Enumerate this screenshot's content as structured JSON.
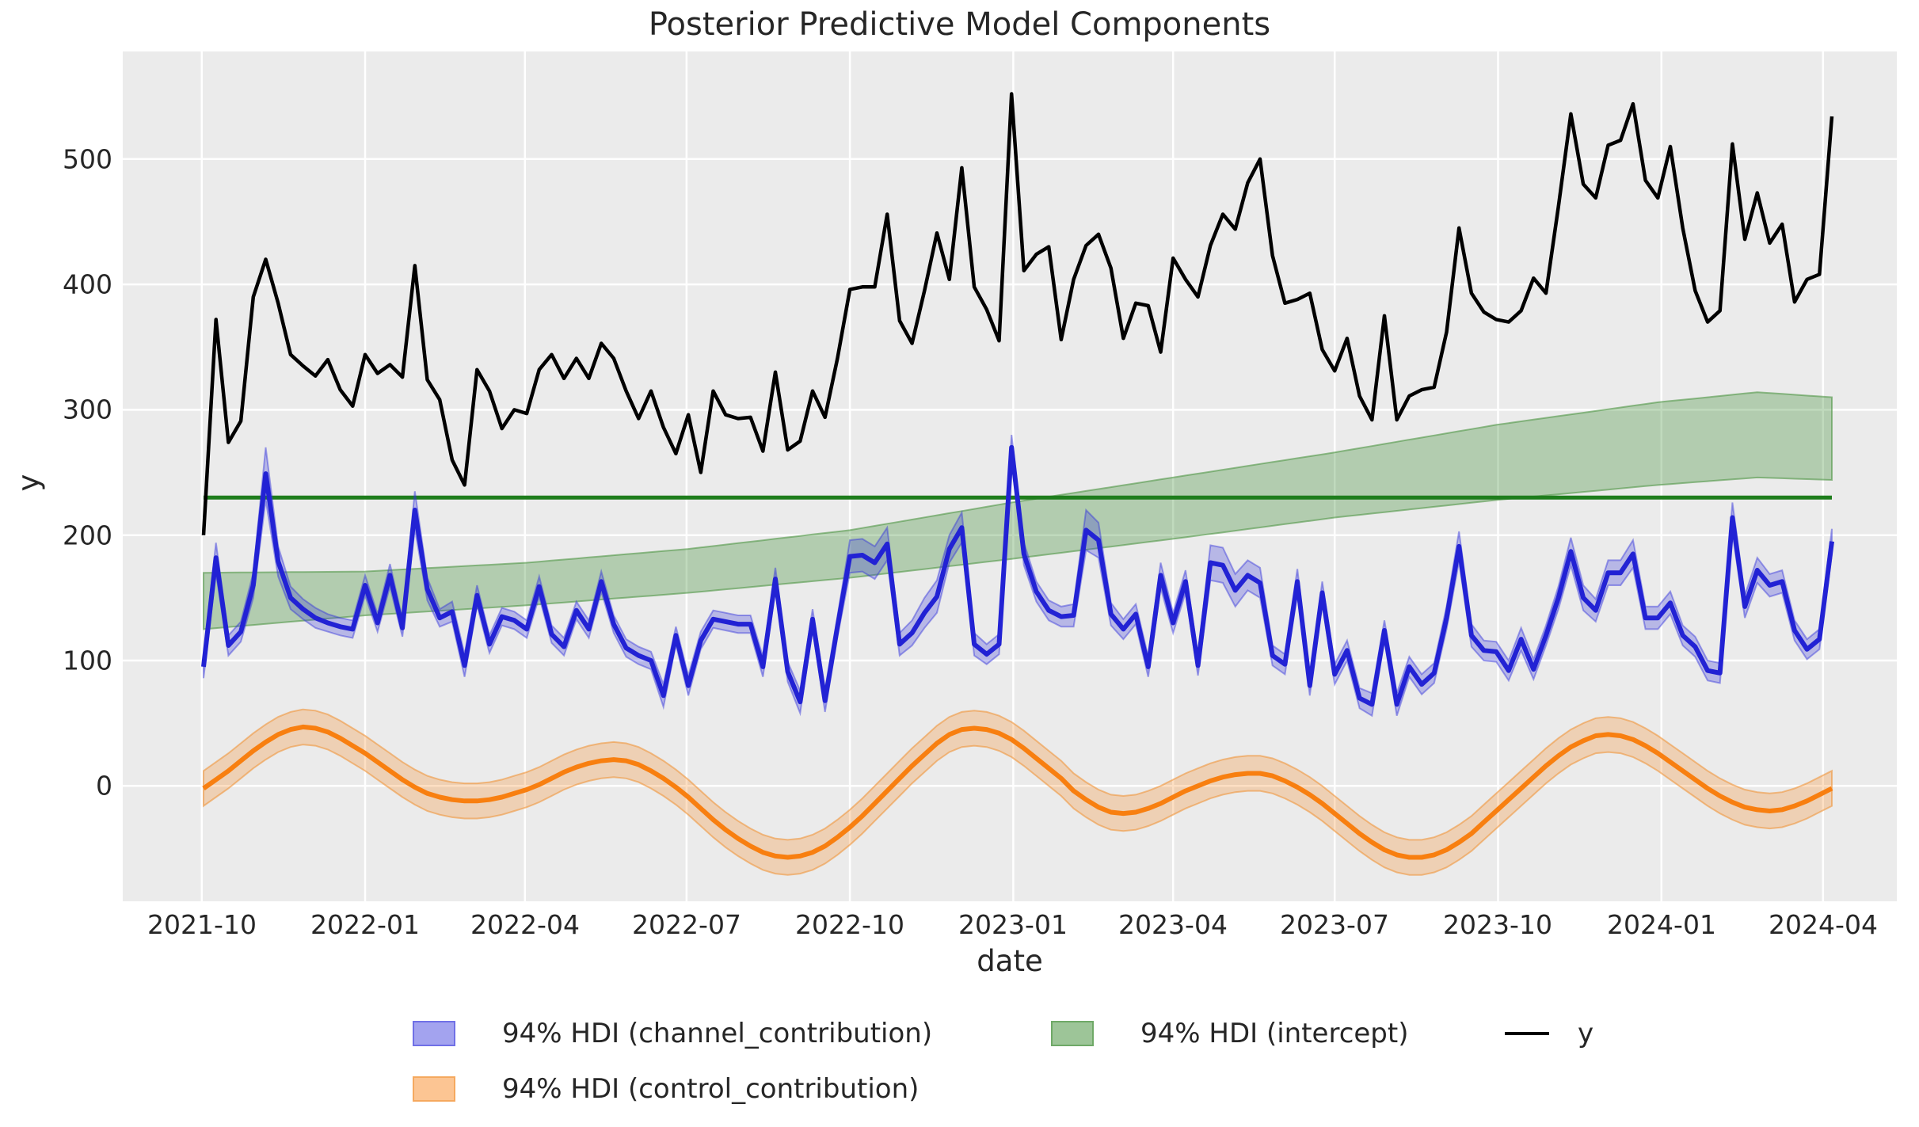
{
  "title": "Posterior Predictive Model Components",
  "axes": {
    "xlabel": "date",
    "ylabel": "y",
    "yticks": [
      0,
      100,
      200,
      300,
      400,
      500
    ],
    "xticks": [
      {
        "label": "2021-10",
        "date": "2021-10-01"
      },
      {
        "label": "2022-01",
        "date": "2022-01-01"
      },
      {
        "label": "2022-04",
        "date": "2022-04-01"
      },
      {
        "label": "2022-07",
        "date": "2022-07-01"
      },
      {
        "label": "2022-10",
        "date": "2022-10-01"
      },
      {
        "label": "2023-01",
        "date": "2023-01-01"
      },
      {
        "label": "2023-04",
        "date": "2023-04-01"
      },
      {
        "label": "2023-07",
        "date": "2023-07-01"
      },
      {
        "label": "2023-10",
        "date": "2023-10-01"
      },
      {
        "label": "2024-01",
        "date": "2024-01-01"
      },
      {
        "label": "2024-04",
        "date": "2024-04-01"
      }
    ]
  },
  "legend": {
    "channel": "94% HDI (channel_contribution)",
    "intercept": "94% HDI (intercept)",
    "control": "94% HDI (control_contribution)",
    "y": "y"
  },
  "colors": {
    "background_plot": "#ebebeb",
    "grid": "#ffffff",
    "y_line": "#000000",
    "channel_line": "#2222d4",
    "channel_band": "rgba(50,50,220,0.28)",
    "channel_band_edge": "rgba(50,50,220,0.45)",
    "control_line": "#f87f10",
    "control_band": "rgba(248,127,16,0.25)",
    "control_band_edge": "rgba(240,150,60,0.6)",
    "intercept_line": "#1e7d1c",
    "intercept_band": "rgba(60,140,50,0.32)",
    "intercept_band_edge": "rgba(80,150,70,0.6)",
    "text": "#262626"
  },
  "chart_data": {
    "type": "line",
    "title": "Posterior Predictive Model Components",
    "xlabel": "date",
    "ylabel": "y",
    "x_start_date": "2021-10-02",
    "x_step_days": 7,
    "n_points": 132,
    "ylim_shown_gridlines": [
      0,
      500
    ],
    "series": [
      {
        "name": "y",
        "style": "line",
        "values": [
          200,
          372,
          274,
          291,
          390,
          420,
          385,
          344,
          335,
          327,
          340,
          316,
          303,
          344,
          329,
          336,
          326,
          415,
          324,
          308,
          260,
          240,
          332,
          315,
          285,
          300,
          297,
          332,
          344,
          325,
          341,
          325,
          353,
          341,
          315,
          293,
          315,
          286,
          265,
          296,
          250,
          315,
          296,
          293,
          294,
          267,
          330,
          268,
          275,
          315,
          294,
          341,
          396,
          398,
          398,
          456,
          371,
          353,
          395,
          441,
          404,
          493,
          398,
          380,
          355,
          552,
          411,
          424,
          430,
          356,
          404,
          431,
          440,
          413,
          357,
          385,
          383,
          346,
          421,
          404,
          390,
          431,
          456,
          444,
          481,
          500,
          423,
          385,
          388,
          393,
          348,
          331,
          357,
          311,
          292,
          375,
          292,
          311,
          316,
          318,
          362,
          445,
          393,
          378,
          372,
          370,
          379,
          405,
          393,
          462,
          536,
          480,
          469,
          511,
          515,
          544,
          483,
          469,
          510,
          445,
          395,
          370,
          379,
          512,
          436,
          473,
          433,
          448,
          386,
          404,
          408,
          534
        ]
      },
      {
        "name": "channel_contribution_mean",
        "style": "line+band",
        "values": [
          95,
          182,
          112,
          123,
          160,
          249,
          179,
          150,
          141,
          134,
          130,
          127,
          125,
          160,
          130,
          168,
          126,
          220,
          157,
          134,
          139,
          96,
          152,
          113,
          135,
          132,
          125,
          159,
          121,
          111,
          140,
          125,
          163,
          129,
          110,
          104,
          100,
          72,
          120,
          80,
          116,
          133,
          131,
          129,
          129,
          95,
          165,
          91,
          67,
          133,
          68,
          127,
          183,
          184,
          178,
          193,
          113,
          122,
          138,
          151,
          189,
          206,
          113,
          105,
          113,
          270,
          185,
          155,
          140,
          135,
          136,
          204,
          196,
          137,
          125,
          137,
          95,
          168,
          130,
          163,
          96,
          178,
          176,
          156,
          168,
          162,
          104,
          97,
          163,
          80,
          154,
          89,
          108,
          70,
          65,
          124,
          65,
          95,
          81,
          90,
          134,
          191,
          120,
          108,
          107,
          92,
          117,
          93,
          120,
          150,
          187,
          150,
          140,
          170,
          170,
          185,
          134,
          134,
          146,
          120,
          111,
          92,
          90,
          214,
          143,
          172,
          160,
          163,
          124,
          109,
          117,
          195
        ],
        "hdi_half_width": [
          9,
          12,
          8,
          8,
          10,
          21,
          12,
          9,
          8,
          8,
          7,
          7,
          7,
          8,
          7,
          9,
          7,
          15,
          9,
          7,
          8,
          9,
          8,
          7,
          7,
          7,
          7,
          8,
          7,
          7,
          7,
          7,
          8,
          7,
          7,
          7,
          7,
          9,
          7,
          8,
          7,
          7,
          7,
          7,
          7,
          8,
          9,
          8,
          9,
          8,
          9,
          8,
          13,
          13,
          13,
          13,
          9,
          10,
          12,
          13,
          11,
          12,
          9,
          8,
          8,
          10,
          9,
          8,
          8,
          8,
          9,
          16,
          14,
          9,
          8,
          8,
          8,
          10,
          8,
          9,
          8,
          14,
          14,
          13,
          12,
          12,
          8,
          8,
          10,
          8,
          9,
          8,
          8,
          8,
          9,
          8,
          9,
          8,
          8,
          8,
          9,
          12,
          9,
          8,
          8,
          8,
          9,
          8,
          8,
          9,
          11,
          10,
          9,
          10,
          10,
          11,
          9,
          9,
          9,
          8,
          8,
          8,
          8,
          12,
          9,
          10,
          9,
          9,
          8,
          8,
          8,
          10
        ]
      },
      {
        "name": "control_contribution_mean",
        "style": "line+band",
        "values": [
          -2,
          5,
          12,
          20,
          28,
          35,
          41,
          45,
          47,
          46,
          43,
          38,
          32,
          26,
          19,
          12,
          5,
          -1,
          -6,
          -9,
          -11,
          -12,
          -12,
          -11,
          -9,
          -6,
          -3,
          1,
          6,
          11,
          15,
          18,
          20,
          21,
          20,
          17,
          12,
          6,
          -1,
          -9,
          -18,
          -27,
          -35,
          -42,
          -48,
          -53,
          -56,
          -57,
          -56,
          -53,
          -48,
          -41,
          -33,
          -24,
          -14,
          -4,
          6,
          16,
          25,
          34,
          41,
          45,
          46,
          45,
          42,
          37,
          30,
          22,
          14,
          6,
          -4,
          -11,
          -17,
          -21,
          -22,
          -21,
          -18,
          -14,
          -9,
          -4,
          0,
          4,
          7,
          9,
          10,
          10,
          8,
          4,
          -1,
          -7,
          -14,
          -22,
          -30,
          -38,
          -45,
          -51,
          -55,
          -57,
          -57,
          -55,
          -51,
          -45,
          -38,
          -29,
          -20,
          -11,
          -2,
          7,
          16,
          24,
          31,
          36,
          40,
          41,
          40,
          37,
          32,
          26,
          19,
          12,
          5,
          -2,
          -8,
          -13,
          -17,
          -19,
          -20,
          -19,
          -16,
          -12,
          -7,
          -2
        ],
        "hdi_half_width_constant": 14
      },
      {
        "name": "intercept",
        "style": "hline+band",
        "mean": 230,
        "band_bottom_anchors": [
          [
            0,
            125
          ],
          [
            13,
            136
          ],
          [
            26,
            144
          ],
          [
            39,
            154
          ],
          [
            52,
            166
          ],
          [
            65,
            181
          ],
          [
            78,
            197
          ],
          [
            91,
            214
          ],
          [
            104,
            228
          ],
          [
            117,
            240
          ],
          [
            125,
            246
          ],
          [
            131,
            244
          ]
        ],
        "band_top_anchors": [
          [
            0,
            170
          ],
          [
            13,
            171
          ],
          [
            26,
            178
          ],
          [
            39,
            189
          ],
          [
            52,
            204
          ],
          [
            65,
            226
          ],
          [
            78,
            246
          ],
          [
            91,
            266
          ],
          [
            104,
            288
          ],
          [
            117,
            306
          ],
          [
            125,
            314
          ],
          [
            131,
            310
          ]
        ]
      }
    ],
    "legend_entries": [
      "94% HDI (channel_contribution)",
      "94% HDI (control_contribution)",
      "94% HDI (intercept)",
      "y"
    ],
    "legend_position": "below plot, 2 rows"
  }
}
